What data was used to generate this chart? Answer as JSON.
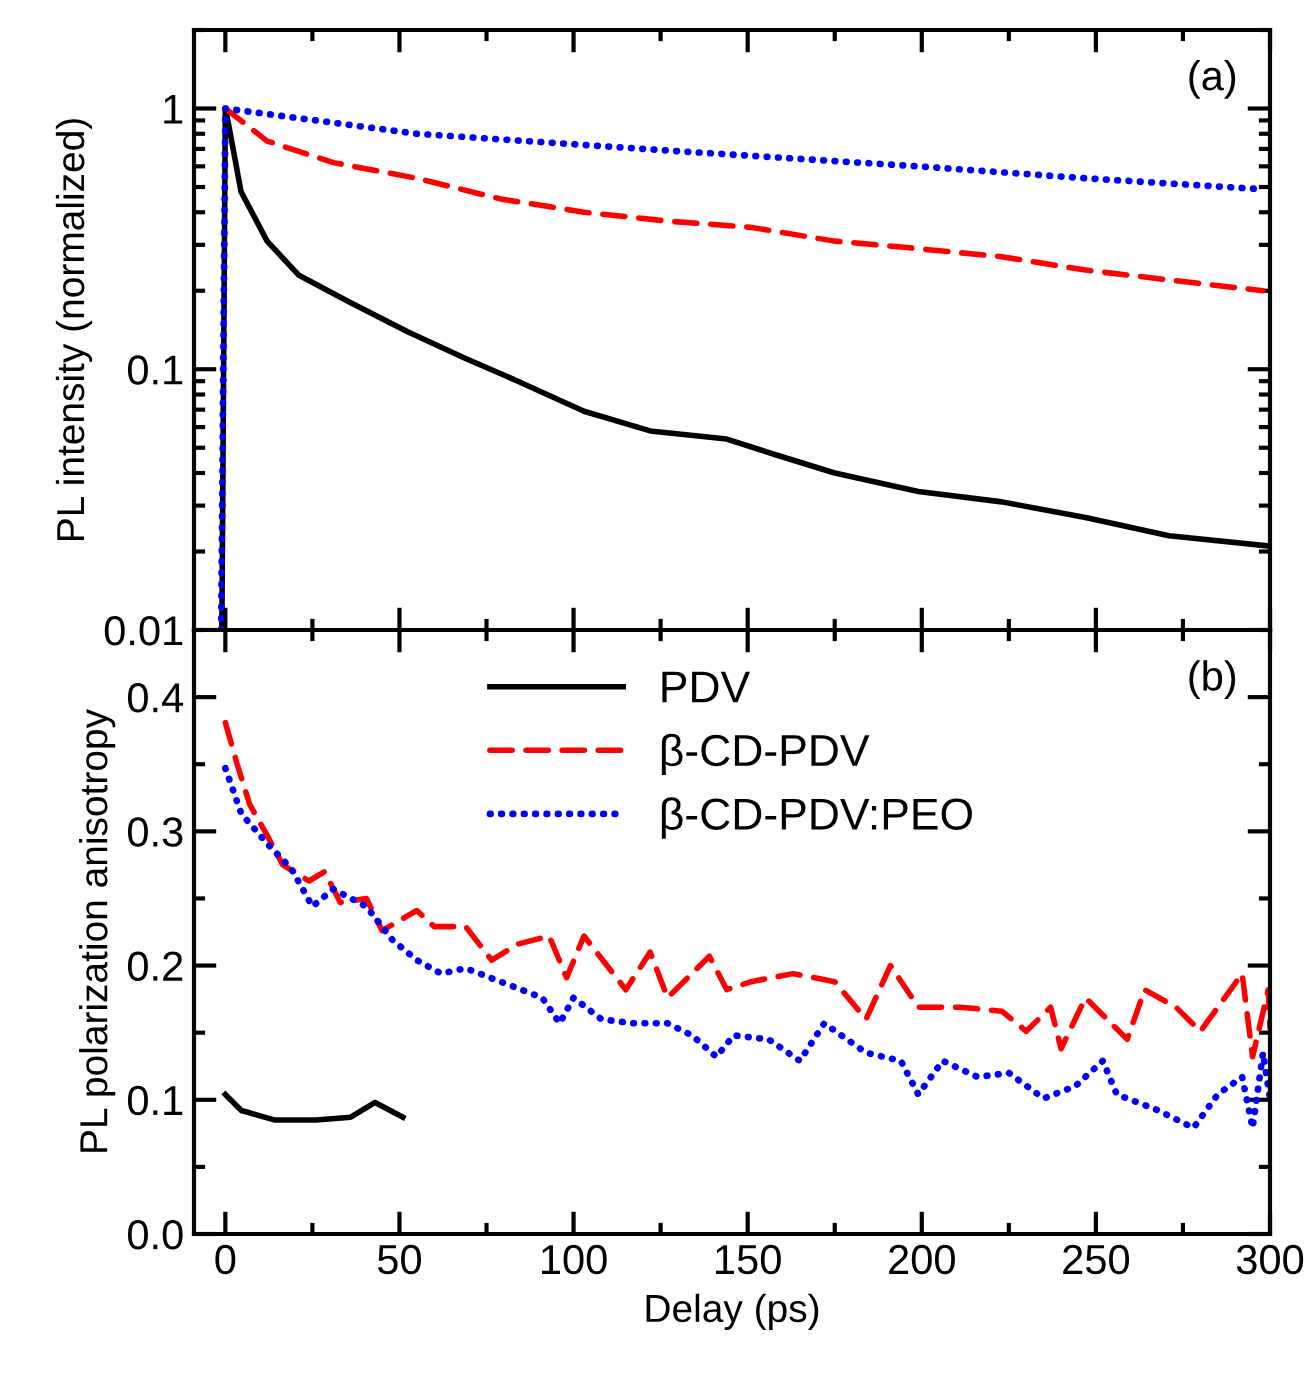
{
  "chart_data": [
    {
      "type": "line",
      "ylabel": "PL intensity (normalized)",
      "log": "y",
      "xlim": [
        -9,
        300
      ],
      "ylim": [
        0.01,
        2
      ],
      "xticks": [
        0,
        50,
        100,
        150,
        200,
        250,
        300
      ],
      "yticks": [
        0.01,
        0.1,
        1
      ],
      "tick_labels": "y",
      "grid": false,
      "legend": false,
      "marker": "none",
      "annotations": [
        "(a)"
      ],
      "series": [
        {
          "color": "#000000",
          "line_style": "solid",
          "x": [
            -1,
            0,
            1,
            4.5,
            12,
            21,
            36,
            52.5,
            69,
            84,
            103,
            122,
            144,
            158,
            175,
            199,
            223,
            247,
            271,
            299.5
          ],
          "values": [
            0.01,
            1,
            0.86,
            0.48,
            0.31,
            0.23,
            0.18,
            0.139,
            0.11,
            0.09,
            0.069,
            0.058,
            0.054,
            0.047,
            0.04,
            0.034,
            0.031,
            0.027,
            0.023,
            0.021
          ]
        },
        {
          "color": "#ff0000",
          "line_style": "dashed",
          "x": [
            0,
            12,
            31,
            55,
            79,
            103,
            127,
            151,
            175,
            199,
            223,
            247,
            271,
            298
          ],
          "values": [
            1,
            0.75,
            0.62,
            0.54,
            0.45,
            0.4,
            0.37,
            0.35,
            0.31,
            0.29,
            0.27,
            0.24,
            0.22,
            0.2
          ]
        },
        {
          "color": "#0000ff",
          "line_style": "dotted",
          "x": [
            -1.2,
            0,
            55,
            127,
            199,
            247,
            298
          ],
          "values": [
            0.01,
            1,
            0.8,
            0.69,
            0.6,
            0.54,
            0.49
          ]
        }
      ]
    },
    {
      "type": "line",
      "xlabel": "Delay (ps)",
      "ylabel": "PL polarization anisotropy",
      "xlim": [
        -9,
        300
      ],
      "ylim": [
        0,
        0.45
      ],
      "xticks": [
        0,
        50,
        100,
        150,
        200,
        250,
        300
      ],
      "yticks": [
        {
          "value": 0,
          "label": "0.0"
        },
        0.1,
        0.2,
        0.3,
        0.4
      ],
      "grid": false,
      "legend": "top",
      "marker": "none",
      "annotations": [
        "(b)"
      ],
      "series": [
        {
          "name": "PDV",
          "color": "#000000",
          "line_style": "solid",
          "x": [
            0,
            4.6,
            14,
            26,
            36,
            43,
            51
          ],
          "values": [
            0.104,
            0.092,
            0.085,
            0.085,
            0.087,
            0.098,
            0.087
          ]
        },
        {
          "name": "β-CD-PDV",
          "color": "#ff0000",
          "line_style": "dashed",
          "x": [
            0,
            3.4,
            7,
            12,
            16.5,
            24,
            28.5,
            33,
            40.5,
            45,
            55,
            60,
            64.5,
            69,
            76.5,
            84,
            93,
            98,
            103,
            115,
            122,
            127,
            139,
            144,
            151,
            163,
            175,
            184,
            191,
            199,
            211,
            223,
            230,
            237,
            240,
            247,
            259,
            264,
            273,
            280,
            292,
            295,
            299.5,
            300
          ],
          "values": [
            0.381,
            0.35,
            0.32,
            0.297,
            0.275,
            0.263,
            0.27,
            0.247,
            0.25,
            0.226,
            0.241,
            0.229,
            0.229,
            0.229,
            0.204,
            0.216,
            0.222,
            0.191,
            0.222,
            0.182,
            0.21,
            0.176,
            0.207,
            0.182,
            0.188,
            0.194,
            0.188,
            0.16,
            0.2,
            0.169,
            0.169,
            0.166,
            0.151,
            0.169,
            0.138,
            0.176,
            0.145,
            0.182,
            0.169,
            0.151,
            0.194,
            0.132,
            0.182,
            0.154
          ]
        },
        {
          "name": "β-CD-PDV:PEO",
          "color": "#0000ff",
          "line_style": "dotted",
          "x": [
            0,
            4.6,
            12,
            19,
            25,
            31,
            40.5,
            48,
            55,
            62,
            69,
            79,
            91,
            96,
            100,
            108,
            117,
            127,
            134,
            141,
            146,
            156,
            165,
            172,
            184,
            194,
            199,
            206,
            216,
            225,
            235,
            244,
            252,
            256,
            268,
            278,
            285,
            292,
            295,
            298,
            300
          ],
          "values": [
            0.347,
            0.313,
            0.291,
            0.272,
            0.244,
            0.257,
            0.244,
            0.219,
            0.204,
            0.194,
            0.198,
            0.188,
            0.176,
            0.157,
            0.176,
            0.16,
            0.157,
            0.157,
            0.148,
            0.132,
            0.148,
            0.145,
            0.129,
            0.157,
            0.135,
            0.129,
            0.104,
            0.129,
            0.117,
            0.12,
            0.101,
            0.11,
            0.129,
            0.104,
            0.092,
            0.079,
            0.104,
            0.117,
            0.079,
            0.135,
            0.101
          ]
        }
      ]
    }
  ]
}
